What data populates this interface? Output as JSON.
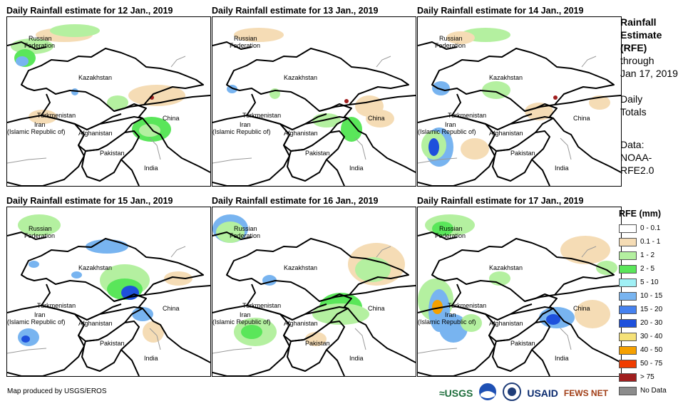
{
  "panels": [
    {
      "title": "Daily Rainfall estimate for 12 Jan., 2019",
      "variant": 0
    },
    {
      "title": "Daily Rainfall estimate for 13 Jan., 2019",
      "variant": 1
    },
    {
      "title": "Daily Rainfall estimate for 14 Jan., 2019",
      "variant": 2
    },
    {
      "title": "Daily Rainfall estimate for 15 Jan., 2019",
      "variant": 3
    },
    {
      "title": "Daily Rainfall estimate for 16 Jan., 2019",
      "variant": 4
    },
    {
      "title": "Daily Rainfall estimate for 17 Jan., 2019",
      "variant": 5
    }
  ],
  "map_labels": {
    "russia_1": "Russian",
    "russia_2": "Federation",
    "kazakhstan": "Kazakhstan",
    "turkmenistan": "Turkmenistan",
    "iran_1": "Iran",
    "iran_2": "(Islamic Republic of)",
    "afghanistan": "Afghanistan",
    "pakistan": "Pakistan",
    "china": "China",
    "india": "India"
  },
  "side_panel": {
    "title_1": "Rainfall",
    "title_2": "Estimate",
    "title_3": "(RFE)",
    "through": "through",
    "date": "Jan 17, 2019",
    "daily_1": "Daily",
    "daily_2": "Totals",
    "data_1": "Data:",
    "data_2": "NOAA-",
    "data_3": "RFE2.0"
  },
  "legend": {
    "title": "RFE (mm)",
    "items": [
      {
        "label": "0 - 0.1",
        "color": "#ffffff"
      },
      {
        "label": "0.1 - 1",
        "color": "#f5dcb5"
      },
      {
        "label": "1 - 2",
        "color": "#b4f0a0"
      },
      {
        "label": "2 - 5",
        "color": "#5ae65a"
      },
      {
        "label": "5 - 10",
        "color": "#a0f0f5"
      },
      {
        "label": "10 - 15",
        "color": "#78b4f0"
      },
      {
        "label": "15 - 20",
        "color": "#4682f0"
      },
      {
        "label": "20 - 30",
        "color": "#1e50dc"
      },
      {
        "label": "30 - 40",
        "color": "#f5e178"
      },
      {
        "label": "40 - 50",
        "color": "#f5a000"
      },
      {
        "label": "50 - 75",
        "color": "#f03c00"
      },
      {
        "label": "> 75",
        "color": "#a01e1e"
      },
      {
        "label": "No Data",
        "color": "#8c8c8c"
      }
    ]
  },
  "credit": "Map produced by USGS/EROS",
  "logos": {
    "usgs": "≈USGS",
    "usaid": "USAID",
    "fews": "FEWS NET"
  }
}
